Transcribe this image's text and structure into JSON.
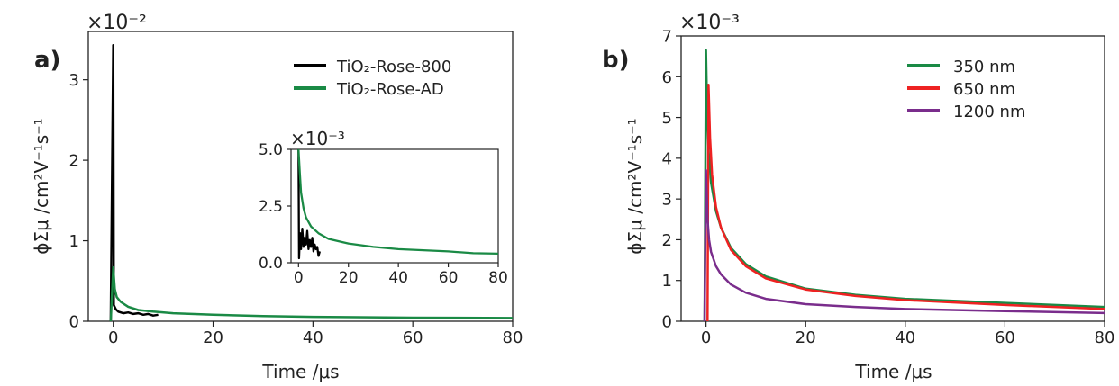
{
  "colors": {
    "rose800": "#000000",
    "roseAD": "#1a8a45",
    "nm350": "#1a8a45",
    "nm650": "#ee2222",
    "nm1200": "#7a2d8c",
    "axis": "#222222"
  },
  "chart_data": [
    {
      "panel_label": "a)",
      "type": "line",
      "xlabel": "Time /μs",
      "ylabel": "ϕΣμ /cm²V⁻¹s⁻¹",
      "multiplier": "×10⁻²",
      "xlim": [
        -5,
        80
      ],
      "ylim": [
        0,
        3.6
      ],
      "xticks": [
        "0",
        "20",
        "40",
        "60",
        "80"
      ],
      "yticks": [
        "0",
        "1",
        "2",
        "3"
      ],
      "legend_position": "top-right",
      "series": [
        {
          "name": "TiO₂-Rose-800",
          "color_key": "rose800",
          "x": [
            -0.5,
            0,
            0.1,
            0.5,
            1,
            2,
            3,
            4,
            5,
            6,
            7,
            8,
            9
          ],
          "y": [
            0,
            3.43,
            0.2,
            0.15,
            0.12,
            0.1,
            0.11,
            0.09,
            0.1,
            0.08,
            0.09,
            0.07,
            0.08
          ]
        },
        {
          "name": "TiO₂-Rose-AD",
          "color_key": "roseAD",
          "x": [
            -0.5,
            0,
            0.3,
            0.7,
            1.5,
            3,
            5,
            8,
            12,
            20,
            30,
            40,
            60,
            80
          ],
          "y": [
            0,
            0.67,
            0.4,
            0.3,
            0.24,
            0.18,
            0.14,
            0.12,
            0.1,
            0.08,
            0.065,
            0.055,
            0.045,
            0.04
          ]
        }
      ],
      "inset": {
        "multiplier": "×10⁻³",
        "xlim": [
          -3,
          80
        ],
        "ylim": [
          0,
          5.0
        ],
        "xticks": [
          "0",
          "20",
          "40",
          "60",
          "80"
        ],
        "yticks": [
          "0.0",
          "2.5",
          "5.0"
        ],
        "series": [
          {
            "name": "TiO₂-Rose-800",
            "color_key": "rose800",
            "x": [
              0,
              0.2,
              0.6,
              1,
              1.5,
              2,
              2.5,
              3,
              3.5,
              4,
              4.5,
              5,
              5.5,
              6,
              6.5,
              7,
              7.5,
              8,
              8.5
            ],
            "y": [
              5.0,
              0.2,
              1.3,
              0.6,
              1.5,
              0.7,
              1.1,
              0.8,
              1.4,
              0.6,
              1.0,
              0.7,
              1.1,
              0.5,
              0.8,
              0.6,
              0.7,
              0.3,
              0.5
            ]
          },
          {
            "name": "TiO₂-Rose-AD",
            "color_key": "roseAD",
            "x": [
              0,
              0.5,
              1,
              2,
              3,
              5,
              8,
              12,
              20,
              30,
              40,
              50,
              60,
              70,
              80
            ],
            "y": [
              5.0,
              4.0,
              3.1,
              2.4,
              2.0,
              1.6,
              1.3,
              1.05,
              0.85,
              0.7,
              0.6,
              0.55,
              0.5,
              0.42,
              0.4
            ]
          }
        ]
      }
    },
    {
      "panel_label": "b)",
      "type": "line",
      "xlabel": "Time /μs",
      "ylabel": "ϕΣμ /cm²V⁻¹s⁻¹",
      "multiplier": "×10⁻³",
      "xlim": [
        -5,
        80
      ],
      "ylim": [
        0,
        7
      ],
      "xticks": [
        "0",
        "20",
        "40",
        "60",
        "80"
      ],
      "yticks": [
        "0",
        "1",
        "2",
        "3",
        "4",
        "5",
        "6",
        "7"
      ],
      "legend_position": "top-right",
      "series": [
        {
          "name": "350 nm",
          "color_key": "nm350",
          "x": [
            -0.3,
            0,
            0.2,
            0.5,
            1,
            2,
            3,
            5,
            8,
            12,
            20,
            30,
            40,
            60,
            80
          ],
          "y": [
            0,
            6.65,
            5.2,
            4.2,
            3.4,
            2.7,
            2.3,
            1.8,
            1.4,
            1.1,
            0.8,
            0.65,
            0.55,
            0.45,
            0.35
          ]
        },
        {
          "name": "650 nm",
          "color_key": "nm650",
          "x": [
            0.3,
            0.5,
            0.8,
            1.2,
            2,
            3,
            5,
            8,
            12,
            20,
            30,
            40,
            60,
            80
          ],
          "y": [
            0,
            5.8,
            4.5,
            3.6,
            2.8,
            2.3,
            1.75,
            1.35,
            1.05,
            0.78,
            0.62,
            0.52,
            0.4,
            0.3
          ]
        },
        {
          "name": "1200 nm",
          "color_key": "nm1200",
          "x": [
            -0.3,
            0,
            0.3,
            0.6,
            1,
            2,
            3,
            5,
            8,
            12,
            20,
            30,
            40,
            60,
            80
          ],
          "y": [
            0,
            3.7,
            2.5,
            2.0,
            1.7,
            1.35,
            1.15,
            0.9,
            0.7,
            0.55,
            0.42,
            0.35,
            0.3,
            0.25,
            0.2
          ]
        }
      ]
    }
  ]
}
